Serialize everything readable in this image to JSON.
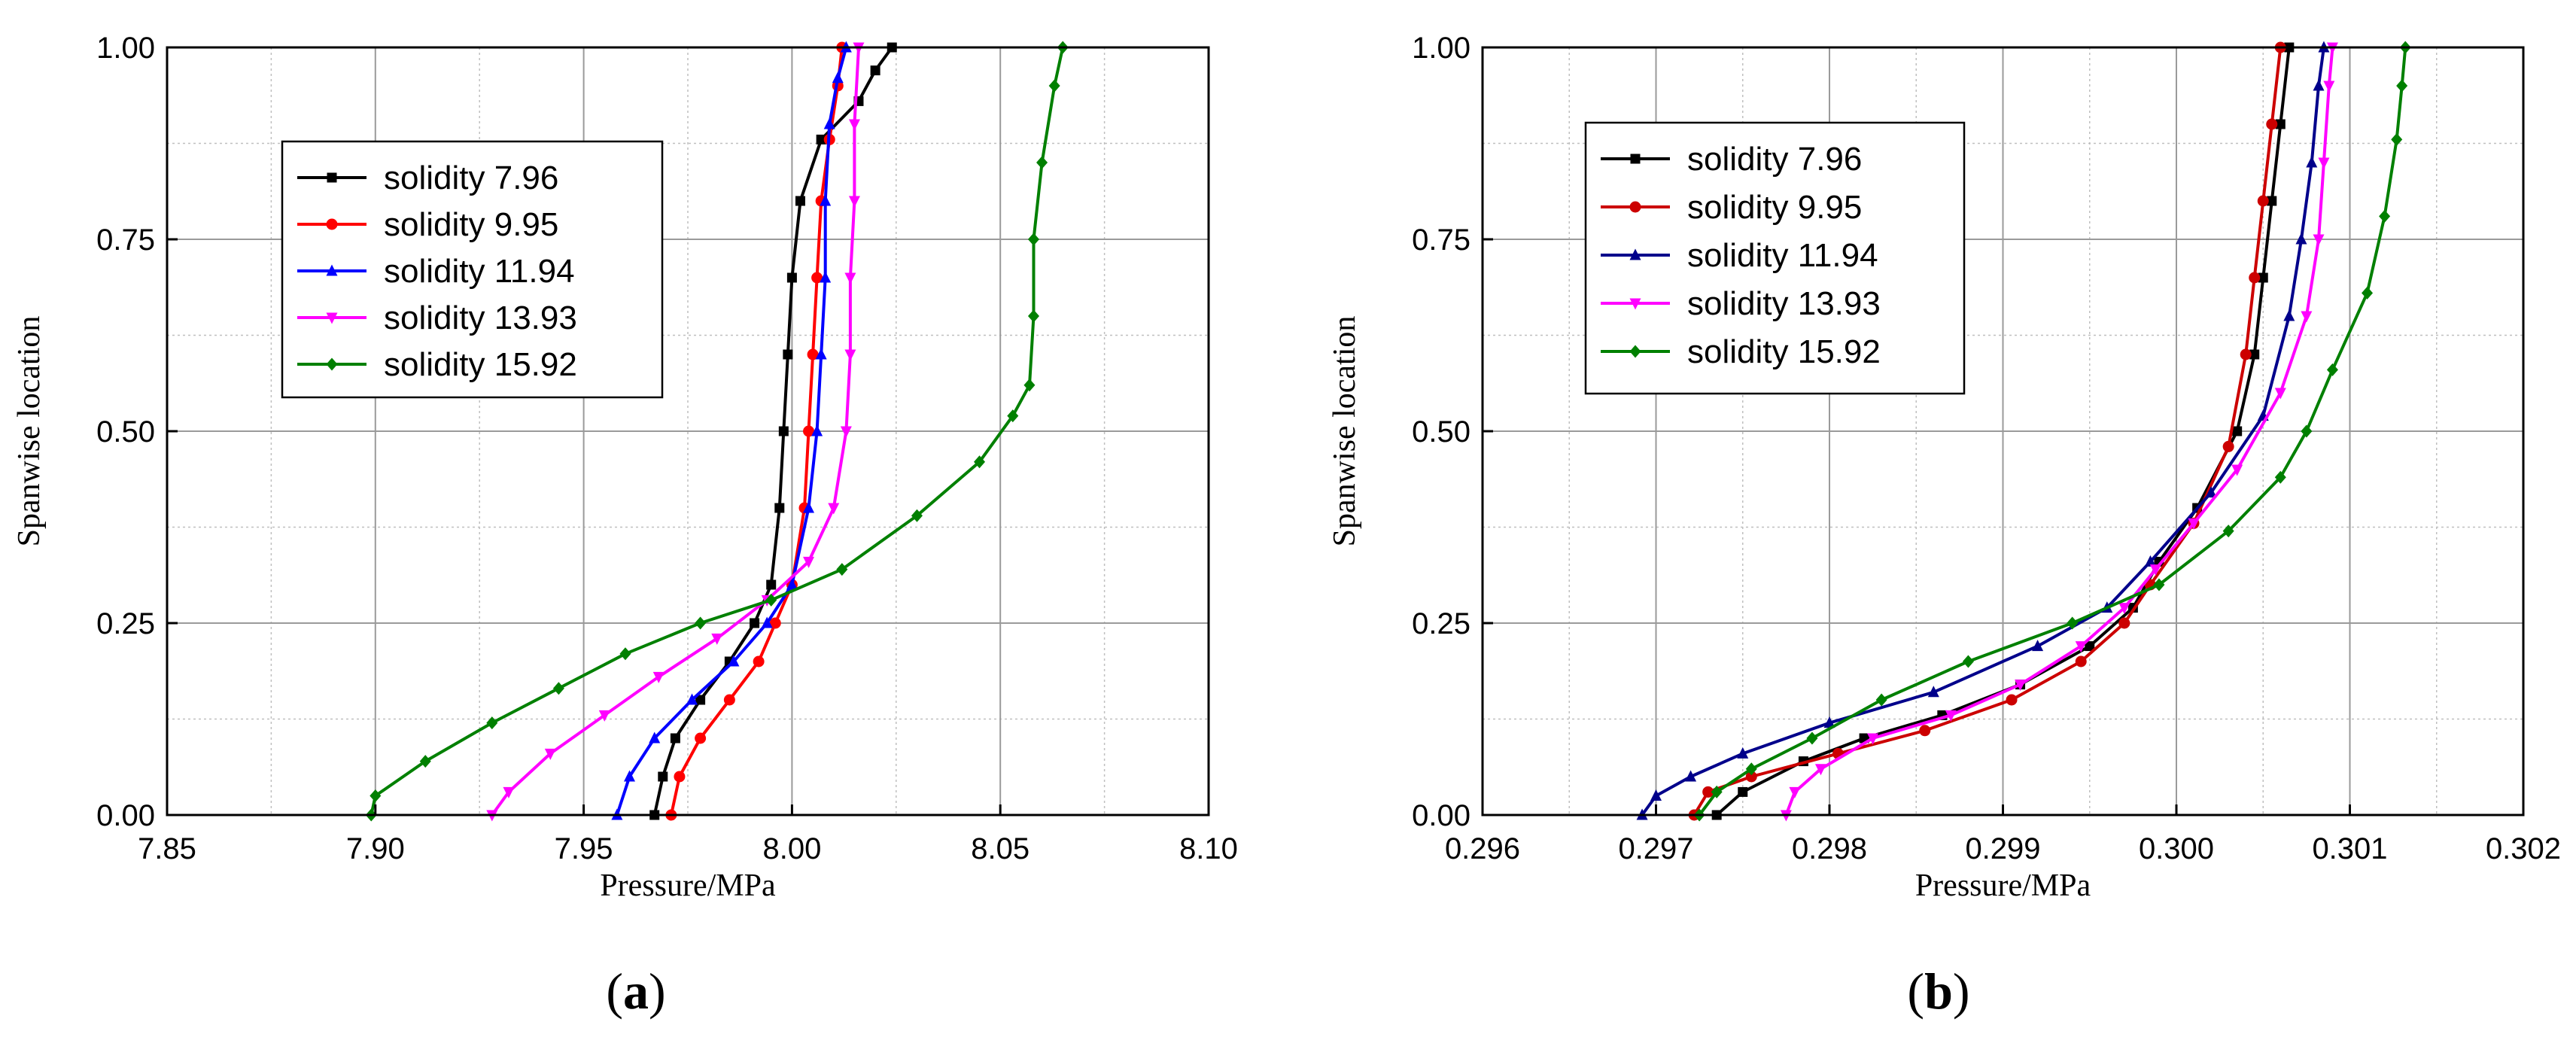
{
  "chart_data": [
    {
      "type": "line",
      "panel_label": "a",
      "xlabel": "Pressure/MPa",
      "ylabel": "Spanwise location",
      "xlim": [
        7.85,
        8.1
      ],
      "ylim": [
        0.0,
        1.0
      ],
      "xticks": [
        "7.85",
        "7.90",
        "7.95",
        "8.00",
        "8.05",
        "8.10"
      ],
      "yticks": [
        "0.00",
        "0.25",
        "0.50",
        "0.75",
        "1.00"
      ],
      "legend": [
        "solidity 7.96",
        "solidity 9.95",
        "solidity 11.94",
        "solidity 13.93",
        "solidity 15.92"
      ],
      "series": [
        {
          "name": "solidity 7.96",
          "color": "#000000",
          "marker": "square",
          "points": [
            [
              7.967,
              0.0
            ],
            [
              7.969,
              0.05
            ],
            [
              7.972,
              0.1
            ],
            [
              7.978,
              0.15
            ],
            [
              7.985,
              0.2
            ],
            [
              7.991,
              0.25
            ],
            [
              7.995,
              0.3
            ],
            [
              7.997,
              0.4
            ],
            [
              7.998,
              0.5
            ],
            [
              7.999,
              0.6
            ],
            [
              8.0,
              0.7
            ],
            [
              8.002,
              0.8
            ],
            [
              8.007,
              0.88
            ],
            [
              8.016,
              0.93
            ],
            [
              8.02,
              0.97
            ],
            [
              8.024,
              1.0
            ]
          ]
        },
        {
          "name": "solidity 9.95",
          "color": "#ff0000",
          "marker": "circle",
          "points": [
            [
              7.971,
              0.0
            ],
            [
              7.973,
              0.05
            ],
            [
              7.978,
              0.1
            ],
            [
              7.985,
              0.15
            ],
            [
              7.992,
              0.2
            ],
            [
              7.996,
              0.25
            ],
            [
              8.0,
              0.3
            ],
            [
              8.003,
              0.4
            ],
            [
              8.004,
              0.5
            ],
            [
              8.005,
              0.6
            ],
            [
              8.006,
              0.7
            ],
            [
              8.007,
              0.8
            ],
            [
              8.009,
              0.88
            ],
            [
              8.011,
              0.95
            ],
            [
              8.012,
              1.0
            ]
          ]
        },
        {
          "name": "solidity 11.94",
          "color": "#0000ff",
          "marker": "triangle-up",
          "points": [
            [
              7.958,
              0.0
            ],
            [
              7.961,
              0.05
            ],
            [
              7.967,
              0.1
            ],
            [
              7.976,
              0.15
            ],
            [
              7.986,
              0.2
            ],
            [
              7.994,
              0.25
            ],
            [
              8.0,
              0.3
            ],
            [
              8.004,
              0.4
            ],
            [
              8.006,
              0.5
            ],
            [
              8.007,
              0.6
            ],
            [
              8.008,
              0.7
            ],
            [
              8.008,
              0.8
            ],
            [
              8.009,
              0.9
            ],
            [
              8.011,
              0.96
            ],
            [
              8.013,
              1.0
            ]
          ]
        },
        {
          "name": "solidity 13.93",
          "color": "#ff00ff",
          "marker": "triangle-down",
          "points": [
            [
              7.928,
              0.0
            ],
            [
              7.932,
              0.03
            ],
            [
              7.942,
              0.08
            ],
            [
              7.955,
              0.13
            ],
            [
              7.968,
              0.18
            ],
            [
              7.982,
              0.23
            ],
            [
              7.994,
              0.28
            ],
            [
              8.004,
              0.33
            ],
            [
              8.01,
              0.4
            ],
            [
              8.013,
              0.5
            ],
            [
              8.014,
              0.6
            ],
            [
              8.014,
              0.7
            ],
            [
              8.015,
              0.8
            ],
            [
              8.015,
              0.9
            ],
            [
              8.016,
              1.0
            ]
          ]
        },
        {
          "name": "solidity 15.92",
          "color": "#008000",
          "marker": "diamond",
          "points": [
            [
              7.899,
              0.0
            ],
            [
              7.9,
              0.025
            ],
            [
              7.912,
              0.07
            ],
            [
              7.928,
              0.12
            ],
            [
              7.944,
              0.165
            ],
            [
              7.96,
              0.21
            ],
            [
              7.978,
              0.25
            ],
            [
              7.995,
              0.28
            ],
            [
              8.012,
              0.32
            ],
            [
              8.03,
              0.39
            ],
            [
              8.045,
              0.46
            ],
            [
              8.053,
              0.52
            ],
            [
              8.057,
              0.56
            ],
            [
              8.058,
              0.65
            ],
            [
              8.058,
              0.75
            ],
            [
              8.06,
              0.85
            ],
            [
              8.063,
              0.95
            ],
            [
              8.065,
              1.0
            ]
          ]
        }
      ]
    },
    {
      "type": "line",
      "panel_label": "b",
      "xlabel": "Pressure/MPa",
      "ylabel": "Spanwise location",
      "xlim": [
        0.296,
        0.302
      ],
      "ylim": [
        0.0,
        1.0
      ],
      "xticks": [
        "0.296",
        "0.297",
        "0.298",
        "0.299",
        "0.300",
        "0.301",
        "0.302"
      ],
      "yticks": [
        "0.00",
        "0.25",
        "0.50",
        "0.75",
        "1.00"
      ],
      "legend": [
        "solidity 7.96",
        "solidity 9.95",
        "solidity 11.94",
        "solidity 13.93",
        "solidity 15.92"
      ],
      "series": [
        {
          "name": "solidity 7.96",
          "color": "#000000",
          "marker": "square",
          "points": [
            [
              0.29735,
              0.0
            ],
            [
              0.2975,
              0.03
            ],
            [
              0.29785,
              0.07
            ],
            [
              0.2982,
              0.1
            ],
            [
              0.29865,
              0.13
            ],
            [
              0.2991,
              0.17
            ],
            [
              0.2995,
              0.22
            ],
            [
              0.29975,
              0.27
            ],
            [
              0.2999,
              0.33
            ],
            [
              0.30012,
              0.4
            ],
            [
              0.30035,
              0.5
            ],
            [
              0.30045,
              0.6
            ],
            [
              0.3005,
              0.7
            ],
            [
              0.30055,
              0.8
            ],
            [
              0.3006,
              0.9
            ],
            [
              0.30065,
              1.0
            ]
          ]
        },
        {
          "name": "solidity 9.95",
          "color": "#cc0000",
          "marker": "circle",
          "points": [
            [
              0.29722,
              0.0
            ],
            [
              0.2973,
              0.03
            ],
            [
              0.29755,
              0.05
            ],
            [
              0.29805,
              0.08
            ],
            [
              0.29855,
              0.11
            ],
            [
              0.29905,
              0.15
            ],
            [
              0.29945,
              0.2
            ],
            [
              0.2997,
              0.25
            ],
            [
              0.29985,
              0.3
            ],
            [
              0.3001,
              0.38
            ],
            [
              0.3003,
              0.48
            ],
            [
              0.3004,
              0.6
            ],
            [
              0.30045,
              0.7
            ],
            [
              0.3005,
              0.8
            ],
            [
              0.30055,
              0.9
            ],
            [
              0.3006,
              1.0
            ]
          ]
        },
        {
          "name": "solidity 11.94",
          "color": "#00008b",
          "marker": "triangle-up",
          "points": [
            [
              0.29692,
              0.0
            ],
            [
              0.297,
              0.025
            ],
            [
              0.2972,
              0.05
            ],
            [
              0.2975,
              0.08
            ],
            [
              0.298,
              0.12
            ],
            [
              0.2986,
              0.16
            ],
            [
              0.2992,
              0.22
            ],
            [
              0.2996,
              0.27
            ],
            [
              0.29985,
              0.33
            ],
            [
              0.3002,
              0.42
            ],
            [
              0.3005,
              0.52
            ],
            [
              0.30065,
              0.65
            ],
            [
              0.30072,
              0.75
            ],
            [
              0.30078,
              0.85
            ],
            [
              0.30082,
              0.95
            ],
            [
              0.30085,
              1.0
            ]
          ]
        },
        {
          "name": "solidity 13.93",
          "color": "#ff00ff",
          "marker": "triangle-down",
          "points": [
            [
              0.29775,
              0.0
            ],
            [
              0.2978,
              0.03
            ],
            [
              0.29795,
              0.06
            ],
            [
              0.29825,
              0.1
            ],
            [
              0.2987,
              0.13
            ],
            [
              0.2991,
              0.17
            ],
            [
              0.29945,
              0.22
            ],
            [
              0.2997,
              0.27
            ],
            [
              0.29988,
              0.32
            ],
            [
              0.3001,
              0.38
            ],
            [
              0.30035,
              0.45
            ],
            [
              0.3006,
              0.55
            ],
            [
              0.30075,
              0.65
            ],
            [
              0.30082,
              0.75
            ],
            [
              0.30085,
              0.85
            ],
            [
              0.30088,
              0.95
            ],
            [
              0.3009,
              1.0
            ]
          ]
        },
        {
          "name": "solidity 15.92",
          "color": "#008000",
          "marker": "diamond",
          "points": [
            [
              0.29725,
              0.0
            ],
            [
              0.29735,
              0.03
            ],
            [
              0.29755,
              0.06
            ],
            [
              0.2979,
              0.1
            ],
            [
              0.2983,
              0.15
            ],
            [
              0.2988,
              0.2
            ],
            [
              0.2994,
              0.25
            ],
            [
              0.2999,
              0.3
            ],
            [
              0.3003,
              0.37
            ],
            [
              0.3006,
              0.44
            ],
            [
              0.30075,
              0.5
            ],
            [
              0.3009,
              0.58
            ],
            [
              0.3011,
              0.68
            ],
            [
              0.3012,
              0.78
            ],
            [
              0.30127,
              0.88
            ],
            [
              0.3013,
              0.95
            ],
            [
              0.30132,
              1.0
            ]
          ]
        }
      ]
    }
  ],
  "captions": {
    "left": "a",
    "right": "b"
  }
}
